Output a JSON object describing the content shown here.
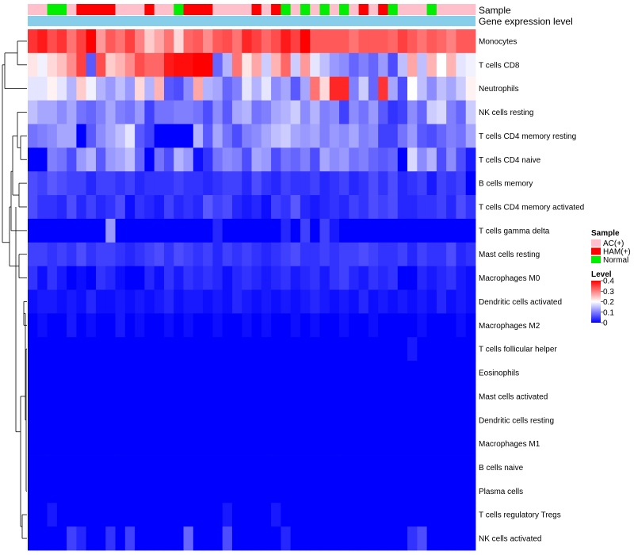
{
  "chart_data": {
    "type": "heatmap",
    "title": "",
    "annotation_tracks": [
      {
        "name": "Sample",
        "label": "Sample"
      },
      {
        "name": "Gene expression level",
        "label": "Gene expression level"
      }
    ],
    "sample_groups": [
      "AC",
      "AC",
      "N",
      "N",
      "AC",
      "H",
      "H",
      "H",
      "H",
      "AC",
      "AC",
      "AC",
      "H",
      "AC",
      "AC",
      "N",
      "H",
      "H",
      "H",
      "AC",
      "AC",
      "AC",
      "AC",
      "H",
      "AC",
      "H",
      "N",
      "AC",
      "N",
      "AC",
      "N",
      "AC",
      "N",
      "AC",
      "H",
      "AC",
      "H",
      "N",
      "AC",
      "AC",
      "AC",
      "N",
      "AC",
      "AC",
      "AC",
      "AC"
    ],
    "sample_colors": {
      "AC": "#ffc0cb",
      "H": "#ff0000",
      "N": "#00ee00"
    },
    "expression_level_color": "#87ceeb",
    "rows": [
      "Monocytes",
      "T cells CD8",
      "Neutrophils",
      "NK cells resting",
      "T cells CD4 memory resting",
      "T cells CD4 naive",
      "B cells memory",
      "T cells CD4 memory activated",
      "T cells gamma delta",
      "Mast cells resting",
      "Macrophages M0",
      "Dendritic cells activated",
      "Macrophages M2",
      "T cells follicular helper",
      "Eosinophils",
      "Mast cells activated",
      "Dendritic cells resting",
      "Macrophages M1",
      "B cells naive",
      "Plasma cells",
      "T cells regulatory  Tregs",
      "NK cells activated"
    ],
    "values": [
      [
        0.36,
        0.38,
        0.34,
        0.36,
        0.31,
        0.35,
        0.4,
        0.28,
        0.33,
        0.31,
        0.35,
        0.3,
        0.24,
        0.27,
        0.31,
        0.23,
        0.32,
        0.33,
        0.29,
        0.33,
        0.34,
        0.31,
        0.37,
        0.35,
        0.32,
        0.34,
        0.38,
        0.35,
        0.4,
        0.33,
        0.33,
        0.33,
        0.33,
        0.31,
        0.33,
        0.33,
        0.33,
        0.32,
        0.35,
        0.33,
        0.31,
        0.33,
        0.32,
        0.3,
        0.33,
        0.33
      ],
      [
        0.22,
        0.19,
        0.23,
        0.25,
        0.29,
        0.35,
        0.07,
        0.34,
        0.24,
        0.26,
        0.29,
        0.34,
        0.32,
        0.32,
        0.38,
        0.39,
        0.39,
        0.4,
        0.4,
        0.08,
        0.14,
        0.31,
        0.22,
        0.27,
        0.16,
        0.26,
        0.32,
        0.16,
        0.28,
        0.18,
        0.15,
        0.12,
        0.11,
        0.08,
        0.1,
        0.08,
        0.12,
        0.06,
        0.15,
        0.27,
        0.15,
        0.26,
        0.2,
        0.26,
        0.18,
        0.19
      ],
      [
        0.18,
        0.18,
        0.21,
        0.18,
        0.14,
        0.24,
        0.19,
        0.14,
        0.12,
        0.15,
        0.12,
        0.23,
        0.14,
        0.26,
        0.07,
        0.06,
        0.11,
        0.27,
        0.14,
        0.13,
        0.08,
        0.1,
        0.18,
        0.14,
        0.18,
        0.11,
        0.13,
        0.07,
        0.13,
        0.31,
        0.23,
        0.37,
        0.37,
        0.1,
        0.16,
        0.08,
        0.36,
        0.13,
        0.06,
        0.2,
        0.15,
        0.11,
        0.15,
        0.13,
        0.16,
        0.21
      ],
      [
        0.15,
        0.13,
        0.13,
        0.11,
        0.13,
        0.09,
        0.08,
        0.1,
        0.13,
        0.1,
        0.09,
        0.12,
        0.05,
        0.09,
        0.09,
        0.1,
        0.1,
        0.09,
        0.06,
        0.11,
        0.07,
        0.13,
        0.14,
        0.09,
        0.1,
        0.13,
        0.14,
        0.16,
        0.11,
        0.14,
        0.1,
        0.11,
        0.05,
        0.11,
        0.09,
        0.12,
        0.07,
        0.04,
        0.05,
        0.11,
        0.08,
        0.16,
        0.17,
        0.1,
        0.08,
        0.16
      ],
      [
        0.09,
        0.1,
        0.11,
        0.13,
        0.13,
        0.0,
        0.07,
        0.11,
        0.13,
        0.15,
        0.18,
        0.07,
        0.05,
        0.0,
        0.0,
        0.0,
        0.0,
        0.14,
        0.07,
        0.13,
        0.09,
        0.06,
        0.1,
        0.11,
        0.13,
        0.15,
        0.16,
        0.13,
        0.12,
        0.13,
        0.1,
        0.12,
        0.11,
        0.13,
        0.1,
        0.11,
        0.05,
        0.05,
        0.09,
        0.12,
        0.07,
        0.06,
        0.08,
        0.1,
        0.09,
        0.13
      ],
      [
        0.0,
        0.0,
        0.1,
        0.09,
        0.06,
        0.12,
        0.14,
        0.07,
        0.12,
        0.13,
        0.15,
        0.08,
        0.0,
        0.09,
        0.06,
        0.14,
        0.12,
        0.01,
        0.04,
        0.09,
        0.11,
        0.1,
        0.06,
        0.13,
        0.12,
        0.06,
        0.09,
        0.08,
        0.1,
        0.06,
        0.13,
        0.11,
        0.12,
        0.09,
        0.1,
        0.08,
        0.07,
        0.08,
        0.0,
        0.17,
        0.11,
        0.14,
        0.06,
        0.11,
        0.06,
        0.02
      ],
      [
        0.06,
        0.05,
        0.07,
        0.06,
        0.05,
        0.05,
        0.03,
        0.05,
        0.05,
        0.04,
        0.05,
        0.03,
        0.04,
        0.04,
        0.04,
        0.05,
        0.04,
        0.04,
        0.03,
        0.04,
        0.05,
        0.05,
        0.03,
        0.06,
        0.04,
        0.03,
        0.05,
        0.04,
        0.04,
        0.05,
        0.03,
        0.04,
        0.05,
        0.03,
        0.04,
        0.06,
        0.04,
        0.06,
        0.03,
        0.04,
        0.05,
        0.02,
        0.05,
        0.04,
        0.05,
        0.0
      ],
      [
        0.06,
        0.04,
        0.04,
        0.03,
        0.06,
        0.03,
        0.05,
        0.03,
        0.04,
        0.06,
        0.01,
        0.04,
        0.03,
        0.02,
        0.05,
        0.03,
        0.04,
        0.03,
        0.07,
        0.05,
        0.06,
        0.03,
        0.02,
        0.03,
        0.01,
        0.05,
        0.04,
        0.07,
        0.03,
        0.02,
        0.03,
        0.04,
        0.03,
        0.05,
        0.04,
        0.06,
        0.05,
        0.06,
        0.03,
        0.03,
        0.04,
        0.04,
        0.05,
        0.03,
        0.06,
        0.04
      ],
      [
        0.0,
        0.0,
        0.0,
        0.0,
        0.0,
        0.0,
        0.0,
        0.0,
        0.12,
        0.0,
        0.0,
        0.0,
        0.0,
        0.0,
        0.0,
        0.0,
        0.0,
        0.0,
        0.0,
        0.03,
        0.0,
        0.0,
        0.0,
        0.0,
        0.0,
        0.0,
        0.03,
        0.0,
        0.05,
        0.0,
        0.05,
        0.02,
        0.0,
        0.0,
        0.0,
        0.0,
        0.0,
        0.0,
        0.0,
        0.0,
        0.0,
        0.0,
        0.0,
        0.0,
        0.0,
        0.0
      ],
      [
        0.05,
        0.05,
        0.04,
        0.05,
        0.04,
        0.06,
        0.04,
        0.05,
        0.05,
        0.04,
        0.03,
        0.04,
        0.05,
        0.06,
        0.04,
        0.06,
        0.05,
        0.04,
        0.05,
        0.03,
        0.05,
        0.04,
        0.05,
        0.04,
        0.03,
        0.04,
        0.05,
        0.06,
        0.04,
        0.04,
        0.05,
        0.04,
        0.05,
        0.05,
        0.06,
        0.05,
        0.04,
        0.04,
        0.05,
        0.03,
        0.05,
        0.04,
        0.04,
        0.06,
        0.03,
        0.04
      ],
      [
        0.04,
        0.01,
        0.04,
        0.02,
        0.0,
        0.01,
        0.0,
        0.04,
        0.03,
        0.01,
        0.0,
        0.0,
        0.03,
        0.01,
        0.04,
        0.02,
        0.04,
        0.03,
        0.04,
        0.03,
        0.01,
        0.03,
        0.04,
        0.03,
        0.02,
        0.03,
        0.04,
        0.02,
        0.03,
        0.04,
        0.02,
        0.04,
        0.05,
        0.03,
        0.02,
        0.04,
        0.03,
        0.04,
        0.0,
        0.0,
        0.03,
        0.02,
        0.03,
        0.04,
        0.02,
        0.01
      ],
      [
        0.01,
        0.02,
        0.02,
        0.01,
        0.02,
        0.01,
        0.03,
        0.01,
        0.01,
        0.02,
        0.01,
        0.02,
        0.01,
        0.02,
        0.03,
        0.01,
        0.02,
        0.02,
        0.01,
        0.02,
        0.01,
        0.03,
        0.02,
        0.01,
        0.02,
        0.01,
        0.02,
        0.01,
        0.02,
        0.03,
        0.02,
        0.01,
        0.02,
        0.01,
        0.03,
        0.01,
        0.02,
        0.01,
        0.02,
        0.01,
        0.02,
        0.01,
        0.03,
        0.01,
        0.02,
        0.01
      ],
      [
        0.0,
        0.01,
        0.0,
        0.0,
        0.02,
        0.0,
        0.01,
        0.0,
        0.0,
        0.02,
        0.0,
        0.01,
        0.0,
        0.0,
        0.01,
        0.0,
        0.01,
        0.0,
        0.0,
        0.01,
        0.0,
        0.0,
        0.01,
        0.0,
        0.01,
        0.0,
        0.0,
        0.01,
        0.0,
        0.01,
        0.0,
        0.0,
        0.01,
        0.0,
        0.0,
        0.01,
        0.0,
        0.0,
        0.0,
        0.0,
        0.01,
        0.0,
        0.0,
        0.0,
        0.01,
        0.0
      ],
      [
        0.0,
        0.0,
        0.0,
        0.0,
        0.0,
        0.0,
        0.0,
        0.0,
        0.0,
        0.0,
        0.0,
        0.0,
        0.0,
        0.0,
        0.0,
        0.0,
        0.0,
        0.0,
        0.0,
        0.0,
        0.0,
        0.0,
        0.0,
        0.0,
        0.0,
        0.0,
        0.0,
        0.0,
        0.0,
        0.0,
        0.0,
        0.0,
        0.0,
        0.0,
        0.0,
        0.0,
        0.0,
        0.0,
        0.0,
        0.02,
        0.0,
        0.0,
        0.0,
        0.0,
        0.0,
        0.0
      ],
      [
        0.0,
        0.0,
        0.0,
        0.0,
        0.0,
        0.0,
        0.0,
        0.0,
        0.0,
        0.0,
        0.0,
        0.0,
        0.0,
        0.0,
        0.0,
        0.0,
        0.0,
        0.0,
        0.0,
        0.0,
        0.0,
        0.0,
        0.0,
        0.0,
        0.0,
        0.0,
        0.0,
        0.0,
        0.0,
        0.0,
        0.0,
        0.0,
        0.0,
        0.0,
        0.0,
        0.0,
        0.0,
        0.0,
        0.0,
        0.0,
        0.0,
        0.0,
        0.0,
        0.0,
        0.0,
        0.0
      ],
      [
        0.0,
        0.0,
        0.0,
        0.0,
        0.0,
        0.0,
        0.0,
        0.0,
        0.0,
        0.0,
        0.0,
        0.0,
        0.0,
        0.0,
        0.0,
        0.0,
        0.0,
        0.0,
        0.0,
        0.0,
        0.0,
        0.0,
        0.0,
        0.0,
        0.0,
        0.0,
        0.0,
        0.0,
        0.0,
        0.0,
        0.0,
        0.0,
        0.0,
        0.0,
        0.0,
        0.0,
        0.0,
        0.0,
        0.0,
        0.0,
        0.0,
        0.0,
        0.0,
        0.0,
        0.0,
        0.0
      ],
      [
        0.0,
        0.0,
        0.0,
        0.0,
        0.0,
        0.0,
        0.0,
        0.0,
        0.0,
        0.0,
        0.0,
        0.0,
        0.0,
        0.0,
        0.0,
        0.0,
        0.0,
        0.0,
        0.0,
        0.0,
        0.0,
        0.0,
        0.0,
        0.0,
        0.0,
        0.0,
        0.0,
        0.0,
        0.0,
        0.0,
        0.0,
        0.0,
        0.0,
        0.0,
        0.0,
        0.0,
        0.0,
        0.0,
        0.0,
        0.0,
        0.0,
        0.0,
        0.0,
        0.0,
        0.0,
        0.0
      ],
      [
        0.0,
        0.0,
        0.0,
        0.0,
        0.0,
        0.0,
        0.0,
        0.0,
        0.0,
        0.0,
        0.0,
        0.0,
        0.0,
        0.0,
        0.0,
        0.0,
        0.0,
        0.0,
        0.0,
        0.0,
        0.0,
        0.0,
        0.0,
        0.0,
        0.0,
        0.0,
        0.0,
        0.0,
        0.0,
        0.0,
        0.0,
        0.0,
        0.0,
        0.0,
        0.0,
        0.0,
        0.0,
        0.0,
        0.0,
        0.0,
        0.0,
        0.0,
        0.0,
        0.0,
        0.0,
        0.0
      ],
      [
        0.0,
        0.0,
        0.0,
        0.0,
        0.0,
        0.0,
        0.0,
        0.0,
        0.0,
        0.0,
        0.0,
        0.0,
        0.0,
        0.0,
        0.0,
        0.0,
        0.0,
        0.0,
        0.0,
        0.0,
        0.0,
        0.0,
        0.0,
        0.0,
        0.0,
        0.0,
        0.0,
        0.0,
        0.0,
        0.0,
        0.0,
        0.0,
        0.0,
        0.0,
        0.0,
        0.0,
        0.0,
        0.0,
        0.0,
        0.0,
        0.0,
        0.0,
        0.0,
        0.0,
        0.0,
        0.0
      ],
      [
        0.0,
        0.0,
        0.0,
        0.0,
        0.0,
        0.0,
        0.0,
        0.0,
        0.0,
        0.0,
        0.0,
        0.0,
        0.0,
        0.0,
        0.0,
        0.0,
        0.0,
        0.0,
        0.0,
        0.0,
        0.0,
        0.0,
        0.0,
        0.0,
        0.0,
        0.0,
        0.0,
        0.0,
        0.0,
        0.0,
        0.0,
        0.0,
        0.0,
        0.0,
        0.0,
        0.0,
        0.0,
        0.0,
        0.0,
        0.0,
        0.0,
        0.0,
        0.0,
        0.0,
        0.0,
        0.0
      ],
      [
        0.0,
        0.0,
        0.02,
        0.0,
        0.0,
        0.0,
        0.0,
        0.0,
        0.0,
        0.0,
        0.0,
        0.0,
        0.0,
        0.0,
        0.0,
        0.0,
        0.0,
        0.0,
        0.0,
        0.0,
        0.02,
        0.0,
        0.0,
        0.0,
        0.0,
        0.02,
        0.0,
        0.0,
        0.0,
        0.0,
        0.0,
        0.0,
        0.0,
        0.0,
        0.0,
        0.0,
        0.0,
        0.0,
        0.0,
        0.0,
        0.0,
        0.0,
        0.0,
        0.0,
        0.0,
        0.0
      ],
      [
        0.0,
        0.0,
        0.0,
        0.0,
        0.05,
        0.03,
        0.0,
        0.0,
        0.04,
        0.0,
        0.05,
        0.0,
        0.0,
        0.0,
        0.0,
        0.0,
        0.08,
        0.0,
        0.0,
        0.0,
        0.06,
        0.0,
        0.0,
        0.0,
        0.0,
        0.0,
        0.03,
        0.0,
        0.0,
        0.0,
        0.0,
        0.0,
        0.0,
        0.0,
        0.0,
        0.0,
        0.0,
        0.0,
        0.0,
        0.04,
        0.06,
        0.0,
        0.0,
        0.0,
        0.0,
        0.0
      ]
    ],
    "legends": {
      "sample": {
        "title": "Sample",
        "entries": [
          {
            "key": "AC",
            "label": "AC(+)",
            "color": "#ffc0cb"
          },
          {
            "key": "H",
            "label": "HAM(+)",
            "color": "#ff0000"
          },
          {
            "key": "N",
            "label": "Normal",
            "color": "#00ee00"
          }
        ]
      },
      "level": {
        "title": "Level",
        "range": [
          0,
          0.4
        ],
        "tick_labels": [
          "0.4",
          "0.3",
          "0.2",
          "0.1",
          "0"
        ],
        "tick_values": [
          0.4,
          0.3,
          0.2,
          0.1,
          0
        ],
        "colors": {
          "low": "#0000ff",
          "mid": "#ffffff",
          "high": "#ff0000"
        }
      }
    }
  }
}
